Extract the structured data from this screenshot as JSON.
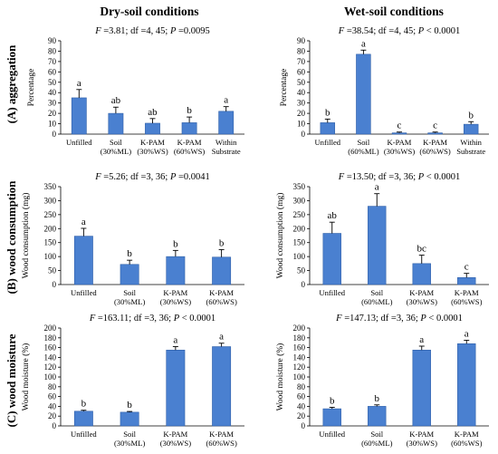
{
  "figure": {
    "col_headers": [
      "Dry-soil conditions",
      "Wet-soil conditions"
    ],
    "row_labels": [
      "(A) aggregation",
      "(B) wood consumption",
      "(C) wood moisture"
    ]
  },
  "colors": {
    "bar": "#4a80d0",
    "bar_edge": "#2f5fa8"
  },
  "chart_data": [
    {
      "type": "bar",
      "panel": "A-dry",
      "stats": [
        "F",
        " =3.81; df =4, 45; ",
        "P",
        " =0.0095"
      ],
      "ylabel": "Percentage",
      "ylim": [
        0,
        90
      ],
      "yticks": [
        0,
        10,
        20,
        30,
        40,
        50,
        60,
        70,
        80,
        90
      ],
      "categories": [
        [
          "Unfilled"
        ],
        [
          "Soil",
          "(30%ML)"
        ],
        [
          "K-PAM",
          "(30%WS)"
        ],
        [
          "K-PAM",
          "(60%WS)"
        ],
        [
          "Within",
          "Substrate"
        ]
      ],
      "values": [
        35,
        20,
        10.5,
        11,
        22
      ],
      "errors": [
        8,
        6,
        4.5,
        5.5,
        4.5
      ],
      "letters": [
        "a",
        "ab",
        "ab",
        "b",
        "a"
      ]
    },
    {
      "type": "bar",
      "panel": "A-wet",
      "stats": [
        "F",
        " =38.54; df =4, 45; ",
        "P",
        " < 0.0001"
      ],
      "ylabel": "Percentage",
      "ylim": [
        0,
        90
      ],
      "yticks": [
        0,
        10,
        20,
        30,
        40,
        50,
        60,
        70,
        80,
        90
      ],
      "categories": [
        [
          "Unfilled"
        ],
        [
          "Soil",
          "(60%ML)"
        ],
        [
          "K-PAM",
          "(30%WS)"
        ],
        [
          "K-PAM",
          "(60%WS)"
        ],
        [
          "Within",
          "Substrate"
        ]
      ],
      "values": [
        11,
        77,
        1.2,
        1.2,
        9.5
      ],
      "errors": [
        3.5,
        4,
        0.8,
        0.8,
        2.5
      ],
      "letters": [
        "b",
        "a",
        "c",
        "c",
        "b"
      ]
    },
    {
      "type": "bar",
      "panel": "B-dry",
      "stats": [
        "F",
        " =5.26; df =3, 36; ",
        "P",
        " =0.0041"
      ],
      "ylabel": "Wood consumption (mg)",
      "ylim": [
        0,
        350
      ],
      "yticks": [
        0,
        50,
        100,
        150,
        200,
        250,
        300,
        350
      ],
      "categories": [
        [
          "Unfilled"
        ],
        [
          "Soil",
          "(30%ML)"
        ],
        [
          "K-PAM",
          "(30%WS)"
        ],
        [
          "K-PAM",
          "(60%WS)"
        ]
      ],
      "values": [
        173,
        72,
        100,
        98
      ],
      "errors": [
        28,
        15,
        22,
        27
      ],
      "letters": [
        "a",
        "b",
        "b",
        "b"
      ]
    },
    {
      "type": "bar",
      "panel": "B-wet",
      "stats": [
        "F",
        " =13.50; df =3, 36; ",
        "P",
        " < 0.0001"
      ],
      "ylabel": "Wood consumption (mg)",
      "ylim": [
        0,
        350
      ],
      "yticks": [
        0,
        50,
        100,
        150,
        200,
        250,
        300,
        350
      ],
      "categories": [
        [
          "Unfilled"
        ],
        [
          "Soil",
          "(60%ML)"
        ],
        [
          "K-PAM",
          "(30%WS)"
        ],
        [
          "K-PAM",
          "(60%WS)"
        ]
      ],
      "values": [
        183,
        280,
        75,
        25
      ],
      "errors": [
        40,
        45,
        30,
        15
      ],
      "letters": [
        "ab",
        "a",
        "bc",
        "c"
      ]
    },
    {
      "type": "bar",
      "panel": "C-dry",
      "stats": [
        "F",
        " =163.11; df =3, 36; ",
        "P",
        " < 0.0001"
      ],
      "ylabel": "Wood moisture (%)",
      "ylim": [
        0,
        200
      ],
      "yticks": [
        0,
        20,
        40,
        60,
        80,
        100,
        120,
        140,
        160,
        180,
        200
      ],
      "categories": [
        [
          "Unfilled"
        ],
        [
          "Soil",
          "(30%ML)"
        ],
        [
          "K-PAM",
          "(30%WS)"
        ],
        [
          "K-PAM",
          "(60%WS)"
        ]
      ],
      "values": [
        30,
        28,
        155,
        162
      ],
      "errors": [
        2,
        1.5,
        7,
        7
      ],
      "letters": [
        "b",
        "b",
        "a",
        "a"
      ]
    },
    {
      "type": "bar",
      "panel": "C-wet",
      "stats": [
        "F",
        " =147.13; df =3, 36; ",
        "P",
        " < 0.0001"
      ],
      "ylabel": "Wood moisture (%)",
      "ylim": [
        0,
        200
      ],
      "yticks": [
        0,
        20,
        40,
        60,
        80,
        100,
        120,
        140,
        160,
        180,
        200
      ],
      "categories": [
        [
          "Unfilled"
        ],
        [
          "Soil",
          "(60%ML)"
        ],
        [
          "K-PAM",
          "(30%WS)"
        ],
        [
          "K-PAM",
          "(60%WS)"
        ]
      ],
      "values": [
        35,
        40,
        155,
        168
      ],
      "errors": [
        3,
        3,
        8,
        7
      ],
      "letters": [
        "b",
        "b",
        "a",
        "a"
      ]
    }
  ]
}
